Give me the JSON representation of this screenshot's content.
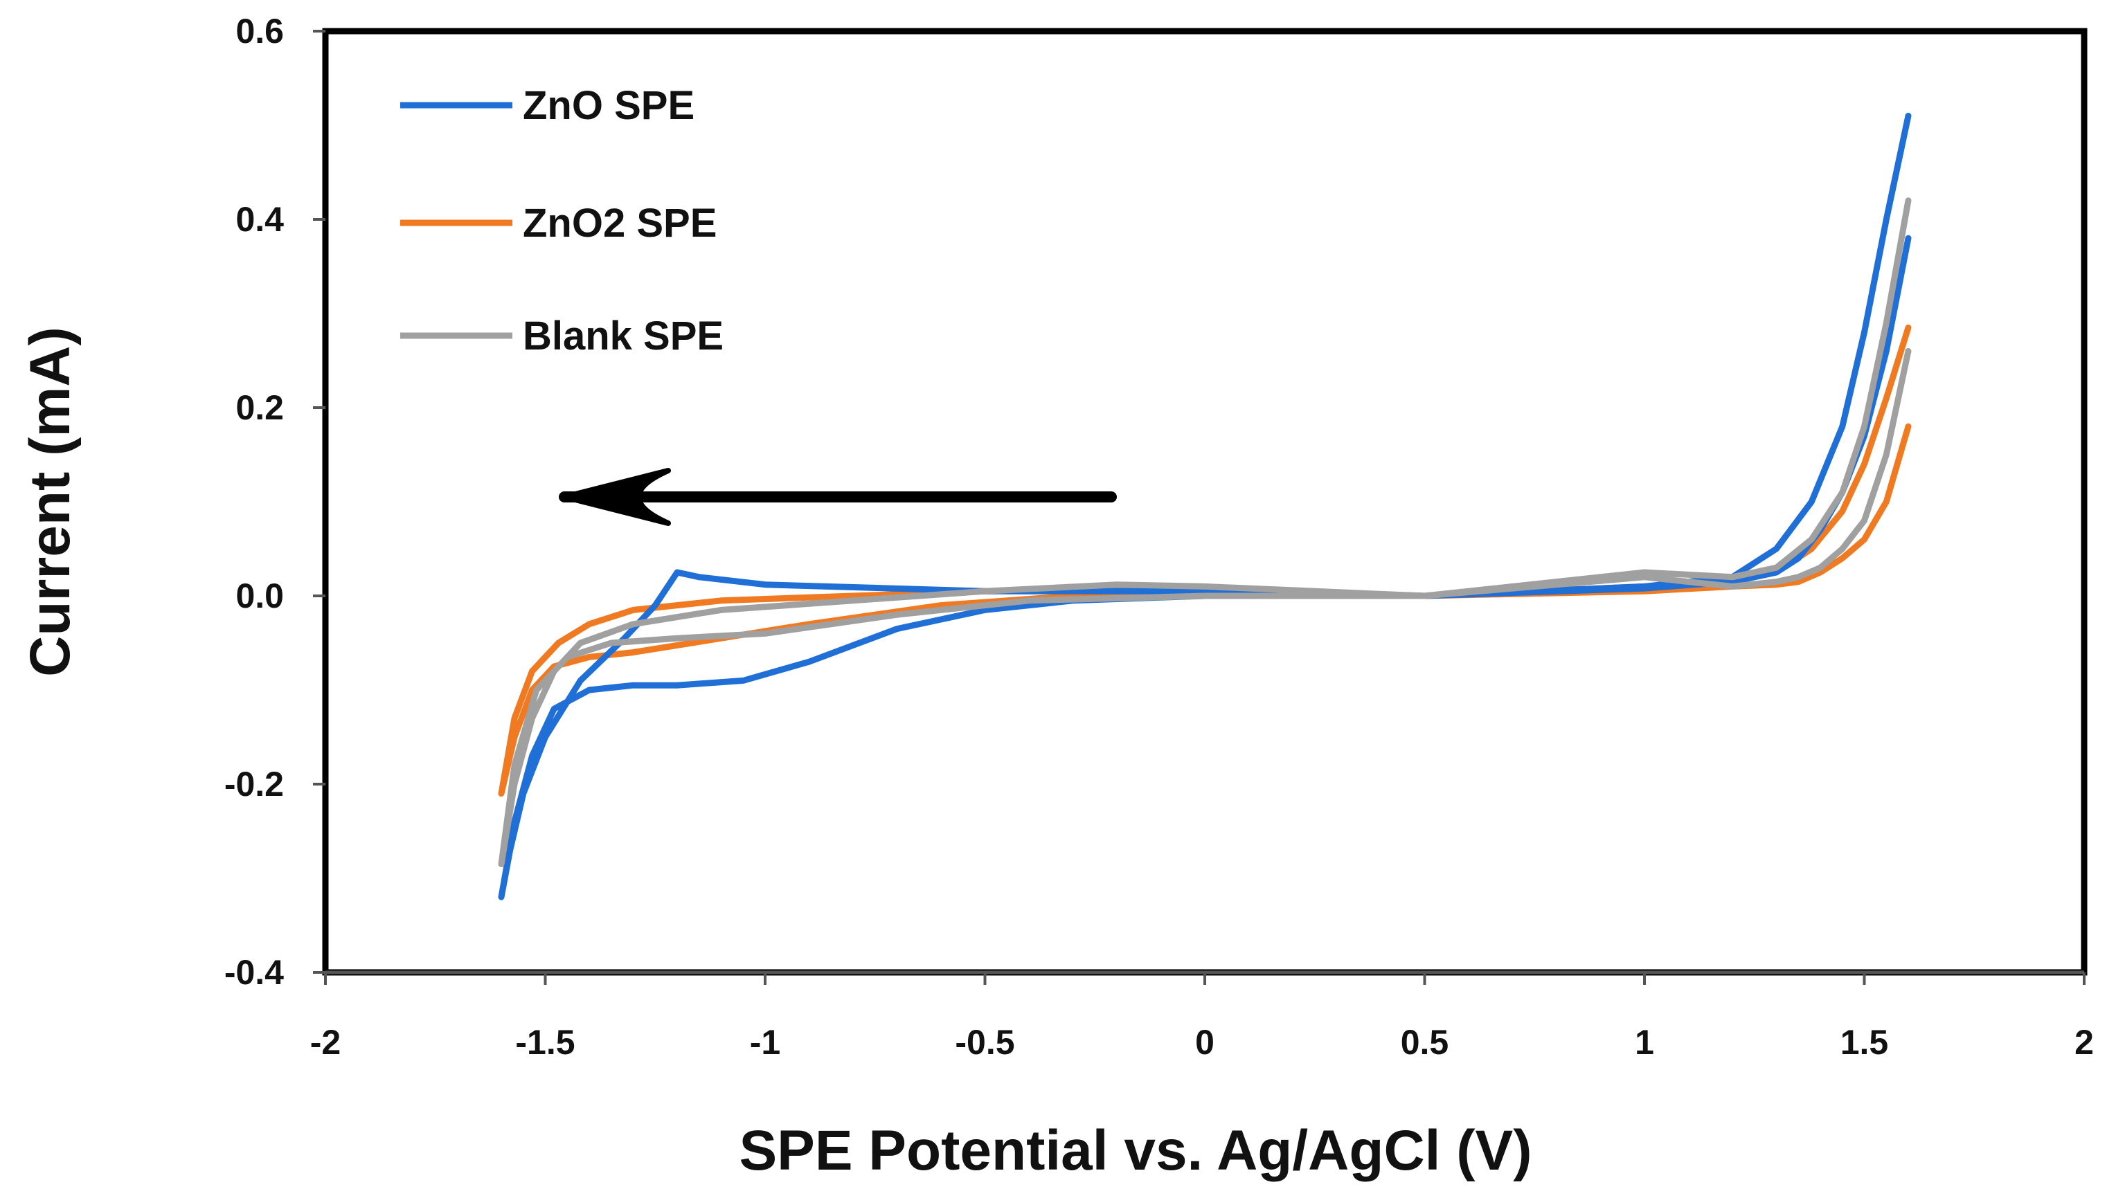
{
  "chart_data": {
    "type": "line",
    "title": "",
    "xlabel": "SPE Potential vs. Ag/AgCl (V)",
    "ylabel": "Current (mA)",
    "xlim": [
      -2,
      2
    ],
    "ylim": [
      -0.4,
      0.6
    ],
    "xticks": [
      -2,
      -1.5,
      -1,
      -0.5,
      0,
      0.5,
      1,
      1.5,
      2
    ],
    "xtick_labels": [
      "-2",
      "-1.5",
      "-1",
      "-0.5",
      "0",
      "0.5",
      "1",
      "1.5",
      "2"
    ],
    "yticks": [
      -0.4,
      -0.2,
      0.0,
      0.2,
      0.4,
      0.6
    ],
    "ytick_labels": [
      "-0.4",
      "-0.2",
      "0.0",
      "0.2",
      "0.4",
      "0.6"
    ],
    "grid": false,
    "legend_position": "top-left",
    "annotation": "arrow pointing left indicating scan direction",
    "series": [
      {
        "name": "ZnO SPE",
        "color": "#1f6fd6",
        "x": [
          1.6,
          1.55,
          1.5,
          1.45,
          1.4,
          1.35,
          1.3,
          1.2,
          1.0,
          0.5,
          0.0,
          -0.3,
          -0.5,
          -0.7,
          -0.9,
          -1.05,
          -1.2,
          -1.3,
          -1.4,
          -1.48,
          -1.53,
          -1.57,
          -1.6,
          -1.58,
          -1.55,
          -1.5,
          -1.42,
          -1.32,
          -1.25,
          -1.2,
          -1.15,
          -1.0,
          -0.5,
          0.0,
          0.5,
          1.0,
          1.2,
          1.3,
          1.38,
          1.45,
          1.5,
          1.55,
          1.6
        ],
        "y": [
          0.38,
          0.26,
          0.17,
          0.11,
          0.07,
          0.04,
          0.025,
          0.015,
          0.008,
          0.0,
          0.0,
          -0.005,
          -0.015,
          -0.035,
          -0.07,
          -0.09,
          -0.095,
          -0.095,
          -0.1,
          -0.12,
          -0.17,
          -0.24,
          -0.32,
          -0.27,
          -0.21,
          -0.15,
          -0.09,
          -0.045,
          -0.01,
          0.025,
          0.02,
          0.012,
          0.005,
          0.005,
          0.0,
          0.01,
          0.02,
          0.05,
          0.1,
          0.18,
          0.28,
          0.4,
          0.51
        ]
      },
      {
        "name": "ZnO2 SPE",
        "color": "#f07a22",
        "x": [
          1.6,
          1.55,
          1.5,
          1.45,
          1.4,
          1.35,
          1.3,
          1.2,
          1.0,
          0.5,
          0.0,
          -0.3,
          -0.6,
          -0.9,
          -1.1,
          -1.3,
          -1.4,
          -1.48,
          -1.53,
          -1.57,
          -1.6,
          -1.57,
          -1.53,
          -1.47,
          -1.4,
          -1.3,
          -1.1,
          -0.8,
          -0.5,
          0.0,
          0.5,
          1.0,
          1.2,
          1.3,
          1.38,
          1.45,
          1.5,
          1.55,
          1.6
        ],
        "y": [
          0.18,
          0.1,
          0.06,
          0.04,
          0.025,
          0.015,
          0.012,
          0.01,
          0.005,
          0.0,
          0.0,
          0.0,
          -0.01,
          -0.03,
          -0.045,
          -0.06,
          -0.065,
          -0.075,
          -0.1,
          -0.15,
          -0.21,
          -0.13,
          -0.08,
          -0.05,
          -0.03,
          -0.015,
          -0.005,
          0.0,
          0.005,
          0.008,
          0.0,
          0.01,
          0.015,
          0.025,
          0.05,
          0.09,
          0.14,
          0.21,
          0.285
        ]
      },
      {
        "name": "Blank SPE",
        "color": "#a0a0a0",
        "x": [
          1.6,
          1.55,
          1.5,
          1.45,
          1.4,
          1.35,
          1.3,
          1.2,
          1.0,
          0.5,
          0.0,
          -0.4,
          -0.7,
          -1.0,
          -1.2,
          -1.35,
          -1.45,
          -1.52,
          -1.57,
          -1.6,
          -1.57,
          -1.53,
          -1.48,
          -1.42,
          -1.3,
          -1.1,
          -0.8,
          -0.5,
          -0.2,
          0.0,
          0.5,
          1.0,
          1.2,
          1.3,
          1.38,
          1.45,
          1.5,
          1.55,
          1.6
        ],
        "y": [
          0.26,
          0.15,
          0.08,
          0.05,
          0.03,
          0.02,
          0.015,
          0.01,
          0.02,
          0.0,
          0.0,
          -0.005,
          -0.02,
          -0.04,
          -0.045,
          -0.05,
          -0.065,
          -0.1,
          -0.18,
          -0.285,
          -0.2,
          -0.13,
          -0.08,
          -0.05,
          -0.03,
          -0.015,
          -0.005,
          0.005,
          0.012,
          0.01,
          0.0,
          0.025,
          0.02,
          0.03,
          0.06,
          0.11,
          0.18,
          0.29,
          0.42
        ]
      }
    ]
  }
}
